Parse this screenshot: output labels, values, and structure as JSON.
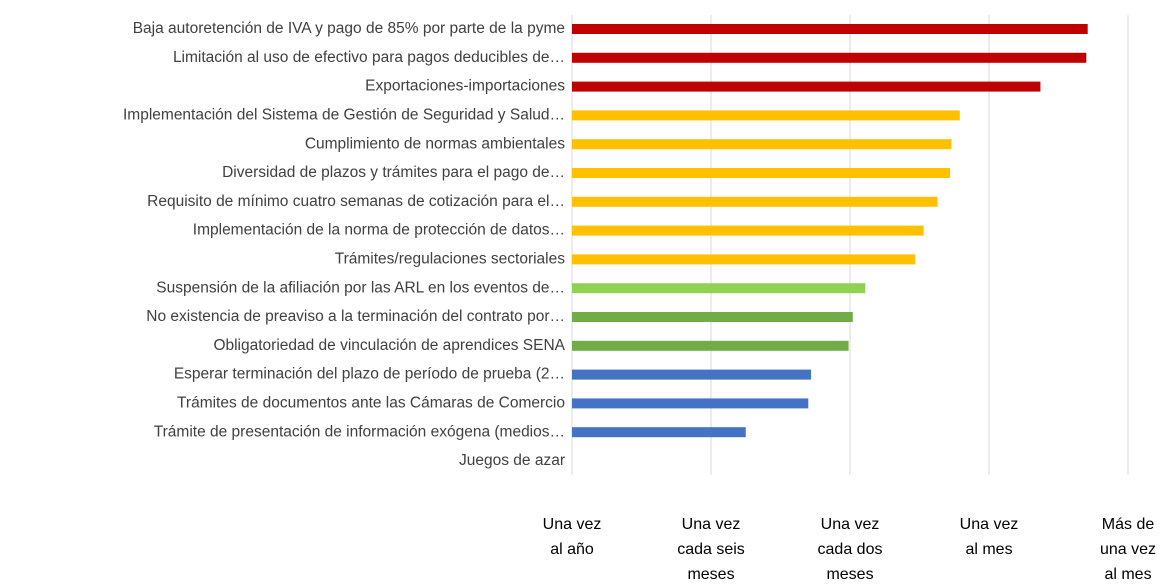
{
  "chart_data": {
    "type": "barh",
    "categories": [
      "Baja autoretención de IVA y pago de 85% por parte de la pyme",
      "Limitación al uso de efectivo para pagos deducibles de…",
      "Exportaciones-importaciones",
      "Implementación del Sistema de Gestión de Seguridad y Salud…",
      "Cumplimiento de normas ambientales",
      "Diversidad de plazos y trámites para el pago de…",
      "Requisito de mínimo cuatro semanas de cotización para el…",
      "Implementación de la norma de protección de datos…",
      "Trámites/regulaciones sectoriales",
      "Suspensión de la afiliación por las ARL en los eventos de…",
      "No existencia de preaviso a la terminación del contrato por…",
      "Obligatoriedad de vinculación de aprendices SENA",
      "Esperar terminación del plazo de período de prueba (2…",
      "Trámites de documentos ante las Cámaras de Comercio",
      "Trámite de presentación de información exógena (medios…",
      "Juegos de azar"
    ],
    "values": [
      4.71,
      4.7,
      4.37,
      3.79,
      3.73,
      3.72,
      3.63,
      3.53,
      3.47,
      3.11,
      3.02,
      2.99,
      2.72,
      2.7,
      2.25,
      1
    ],
    "colors": [
      "#c00000",
      "#c00000",
      "#c00000",
      "#ffc000",
      "#ffc000",
      "#ffc000",
      "#ffc000",
      "#ffc000",
      "#ffc000",
      "#92d050",
      "#70ad47",
      "#70ad47",
      "#4472c4",
      "#4472c4",
      "#4472c4",
      "#4472c4"
    ],
    "xlim": [
      1,
      5
    ],
    "xticks": [
      {
        "value": 1,
        "label": "Una vez al año"
      },
      {
        "value": 2,
        "label": "Una vez cada seis meses"
      },
      {
        "value": 3,
        "label": "Una vez cada dos meses"
      },
      {
        "value": 4,
        "label": "Una vez al mes"
      },
      {
        "value": 5,
        "label": "Más de una vez al mes"
      }
    ],
    "grid": true
  }
}
